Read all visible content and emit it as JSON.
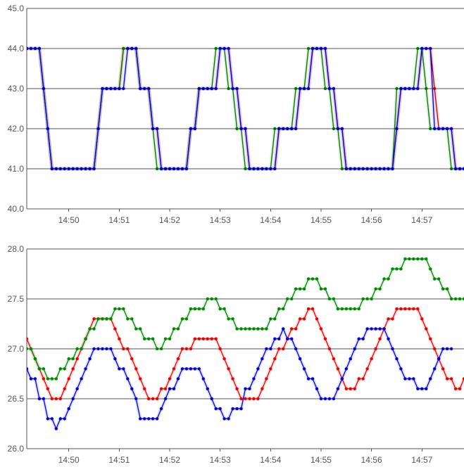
{
  "chart_data": [
    {
      "type": "line",
      "title": "",
      "xlabel": "",
      "ylabel": "",
      "xlim": [
        "14:49:10",
        "14:57:50"
      ],
      "ylim": [
        40.0,
        45.0
      ],
      "y_ticks": [
        "40.0",
        "41.0",
        "42.0",
        "43.0",
        "44.0",
        "45.0"
      ],
      "x_ticks": [
        "14:50",
        "14:51",
        "14:52",
        "14:53",
        "14:54",
        "14:55",
        "14:56",
        "14:57"
      ],
      "grid": true,
      "legend": "none",
      "start_time": "14:49:10",
      "step_seconds": 5,
      "series": [
        {
          "color": "#cc0000",
          "values": [
            44,
            44,
            44,
            44,
            43,
            42,
            41,
            41,
            41,
            41,
            41,
            41,
            41,
            41,
            41,
            41,
            41,
            42,
            43,
            43,
            43,
            43,
            43,
            44,
            44,
            44,
            44,
            43,
            43,
            43,
            42,
            42,
            41,
            41,
            41,
            41,
            41,
            41,
            41,
            42,
            42,
            43,
            43,
            43,
            43,
            43,
            44,
            44,
            44,
            43,
            43,
            42,
            42,
            41,
            41,
            41,
            41,
            41,
            41,
            41,
            42,
            42,
            42,
            42,
            42,
            43,
            43,
            43,
            44,
            44,
            44,
            44,
            43,
            43,
            42,
            42,
            41,
            41,
            41,
            41,
            41,
            41,
            41,
            41,
            41,
            41,
            41,
            41,
            42,
            43,
            43,
            43,
            43,
            43,
            44,
            44,
            44,
            43,
            42,
            42,
            42,
            42,
            41,
            41,
            41,
            41,
            41,
            41
          ]
        },
        {
          "color": "#007700",
          "values": [
            44,
            44,
            44,
            44,
            43,
            42,
            41,
            41,
            41,
            41,
            41,
            41,
            41,
            41,
            41,
            41,
            41,
            42,
            43,
            43,
            43,
            43,
            43,
            44,
            44,
            44,
            44,
            43,
            43,
            43,
            42,
            41,
            41,
            41,
            41,
            41,
            41,
            41,
            41,
            42,
            42,
            43,
            43,
            43,
            43,
            44,
            44,
            44,
            43,
            43,
            42,
            42,
            41,
            41,
            41,
            41,
            41,
            41,
            41,
            42,
            42,
            42,
            42,
            42,
            43,
            43,
            43,
            44,
            44,
            44,
            44,
            43,
            43,
            42,
            42,
            41,
            41,
            41,
            41,
            41,
            41,
            41,
            41,
            41,
            41,
            41,
            41,
            41,
            43,
            43,
            43,
            43,
            43,
            44,
            44,
            43,
            42,
            42,
            42,
            42,
            42,
            41,
            41,
            41,
            41,
            41,
            41,
            41
          ]
        },
        {
          "color": "#0000cc",
          "values": [
            44,
            44,
            44,
            44,
            43,
            42,
            41,
            41,
            41,
            41,
            41,
            41,
            41,
            41,
            41,
            41,
            41,
            42,
            43,
            43,
            43,
            43,
            43,
            43,
            44,
            44,
            44,
            43,
            43,
            43,
            42,
            42,
            41,
            41,
            41,
            41,
            41,
            41,
            41,
            42,
            42,
            43,
            43,
            43,
            43,
            43,
            44,
            44,
            44,
            43,
            43,
            42,
            42,
            41,
            41,
            41,
            41,
            41,
            41,
            41,
            42,
            42,
            42,
            42,
            42,
            43,
            43,
            43,
            44,
            44,
            44,
            44,
            43,
            43,
            42,
            42,
            41,
            41,
            41,
            41,
            41,
            41,
            41,
            41,
            41,
            41,
            41,
            41,
            42,
            43,
            43,
            43,
            43,
            43,
            44,
            44,
            44,
            42,
            42,
            42,
            42,
            42,
            41,
            41,
            41,
            41,
            41,
            41
          ]
        }
      ]
    },
    {
      "type": "line",
      "title": "",
      "xlabel": "",
      "ylabel": "",
      "xlim": [
        "14:49:10",
        "14:57:50"
      ],
      "ylim": [
        26.0,
        28.0
      ],
      "y_ticks": [
        "26.0",
        "26.5",
        "27.0",
        "27.5",
        "28.0"
      ],
      "x_ticks": [
        "14:50",
        "14:51",
        "14:52",
        "14:53",
        "14:54",
        "14:55",
        "14:56",
        "14:57"
      ],
      "grid": true,
      "legend": "none",
      "start_time": "14:49:10",
      "step_seconds": 5,
      "series": [
        {
          "color": "#ee0000",
          "values": [
            27.1,
            27.0,
            26.9,
            26.8,
            26.7,
            26.6,
            26.5,
            26.5,
            26.5,
            26.6,
            26.7,
            26.8,
            26.9,
            27.0,
            27.1,
            27.2,
            27.3,
            27.3,
            27.3,
            27.3,
            27.3,
            27.2,
            27.1,
            27.0,
            27.0,
            26.9,
            26.8,
            26.7,
            26.6,
            26.5,
            26.5,
            26.5,
            26.6,
            26.6,
            26.7,
            26.8,
            26.9,
            27.0,
            27.0,
            27.0,
            27.1,
            27.1,
            27.1,
            27.1,
            27.1,
            27.1,
            27.0,
            26.9,
            26.8,
            26.7,
            26.6,
            26.5,
            26.5,
            26.5,
            26.5,
            26.5,
            26.6,
            26.7,
            26.8,
            26.9,
            27.0,
            27.0,
            27.1,
            27.2,
            27.2,
            27.3,
            27.3,
            27.4,
            27.4,
            27.3,
            27.2,
            27.1,
            27.0,
            26.9,
            26.8,
            26.7,
            26.6,
            26.6,
            26.6,
            26.7,
            26.7,
            26.8,
            26.9,
            27.0,
            27.1,
            27.2,
            27.3,
            27.3,
            27.4,
            27.4,
            27.4,
            27.4,
            27.4,
            27.4,
            27.3,
            27.2,
            27.1,
            27.0,
            26.9,
            26.8,
            26.7,
            26.7,
            26.6,
            26.6,
            26.7,
            26.7,
            26.8,
            26.9,
            27.0,
            27.1
          ]
        },
        {
          "color": "#008800",
          "values": [
            27.0,
            27.0,
            26.9,
            26.8,
            26.8,
            26.7,
            26.7,
            26.7,
            26.8,
            26.8,
            26.9,
            26.9,
            27.0,
            27.0,
            27.1,
            27.2,
            27.2,
            27.3,
            27.3,
            27.3,
            27.3,
            27.4,
            27.4,
            27.4,
            27.3,
            27.3,
            27.2,
            27.2,
            27.1,
            27.1,
            27.1,
            27.0,
            27.0,
            27.1,
            27.1,
            27.2,
            27.2,
            27.3,
            27.3,
            27.4,
            27.4,
            27.4,
            27.4,
            27.5,
            27.5,
            27.5,
            27.4,
            27.4,
            27.3,
            27.3,
            27.2,
            27.2,
            27.2,
            27.2,
            27.2,
            27.2,
            27.2,
            27.2,
            27.3,
            27.3,
            27.4,
            27.4,
            27.5,
            27.5,
            27.6,
            27.6,
            27.6,
            27.7,
            27.7,
            27.7,
            27.6,
            27.6,
            27.5,
            27.5,
            27.4,
            27.4,
            27.4,
            27.4,
            27.4,
            27.4,
            27.5,
            27.5,
            27.5,
            27.6,
            27.6,
            27.7,
            27.7,
            27.8,
            27.8,
            27.8,
            27.9,
            27.9,
            27.9,
            27.9,
            27.9,
            27.9,
            27.8,
            27.7,
            27.7,
            27.6,
            27.6,
            27.5,
            27.5,
            27.5,
            27.5,
            27.5,
            27.6,
            27.7,
            27.7,
            27.8
          ]
        },
        {
          "color": "#0000dd",
          "values": [
            26.8,
            26.7,
            26.7,
            26.5,
            26.5,
            26.3,
            26.3,
            26.2,
            26.3,
            26.3,
            26.4,
            26.5,
            26.6,
            26.7,
            26.8,
            26.9,
            27.0,
            27.0,
            27.0,
            27.0,
            27.0,
            26.9,
            26.8,
            26.8,
            26.7,
            26.6,
            26.5,
            26.3,
            26.3,
            26.3,
            26.3,
            26.3,
            26.4,
            26.5,
            26.6,
            26.6,
            26.7,
            26.8,
            26.8,
            26.8,
            26.8,
            26.8,
            26.7,
            26.6,
            26.5,
            26.4,
            26.4,
            26.3,
            26.3,
            26.4,
            26.4,
            26.4,
            26.6,
            26.6,
            26.7,
            26.8,
            26.9,
            27.0,
            27.0,
            27.1,
            27.1,
            27.2,
            27.1,
            27.1,
            27.0,
            26.9,
            26.8,
            26.7,
            26.7,
            26.6,
            26.5,
            26.5,
            26.5,
            26.5,
            26.6,
            26.7,
            26.8,
            26.9,
            27.0,
            27.1,
            27.1,
            27.2,
            27.2,
            27.2,
            27.2,
            27.2,
            27.1,
            27.0,
            26.9,
            26.8,
            26.7,
            26.7,
            26.7,
            26.6,
            26.6,
            26.6,
            26.7,
            26.8,
            26.9,
            27.0,
            27.0,
            27.0
          ]
        }
      ]
    }
  ]
}
